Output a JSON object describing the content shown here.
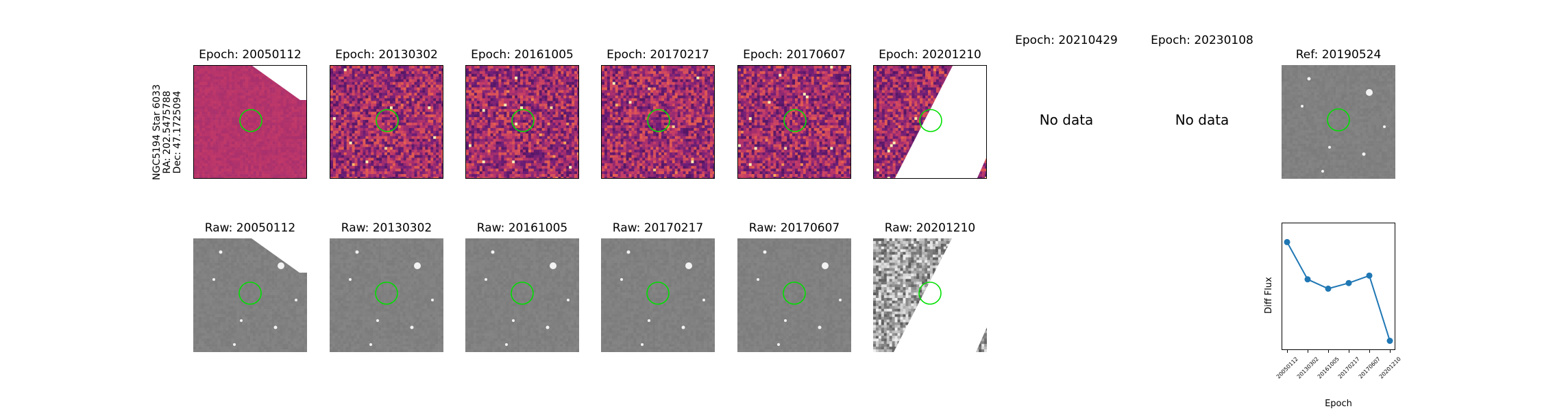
{
  "target": {
    "name": "NGC5194 Star 6033",
    "ra": "RA: 202.5475788",
    "dec": "Dec: 47.1725094"
  },
  "diff_titles": [
    "Epoch: 20050112",
    "Epoch: 20130302",
    "Epoch: 20161005",
    "Epoch: 20170217",
    "Epoch: 20170607",
    "Epoch: 20201210",
    "Epoch: 20210429",
    "Epoch: 20230108"
  ],
  "no_data_text": "No data",
  "ref_title": "Ref: 20190524",
  "raw_titles": [
    "Raw: 20050112",
    "Raw: 20130302",
    "Raw: 20161005",
    "Raw: 20170217",
    "Raw: 20170607",
    "Raw: 20201210"
  ],
  "colors": {
    "circle": "#00e000",
    "line": "#1f77b4"
  },
  "chart_data": {
    "type": "line",
    "xlabel": "Epoch",
    "ylabel": "Diff Flux",
    "categories": [
      "20050112",
      "20130302",
      "20161005",
      "20170217",
      "20170607",
      "20201210"
    ],
    "values": [
      0.9,
      0.5,
      0.4,
      0.46,
      0.54,
      -0.16
    ],
    "ylim": [
      -0.2,
      1.05
    ],
    "grid": false
  }
}
